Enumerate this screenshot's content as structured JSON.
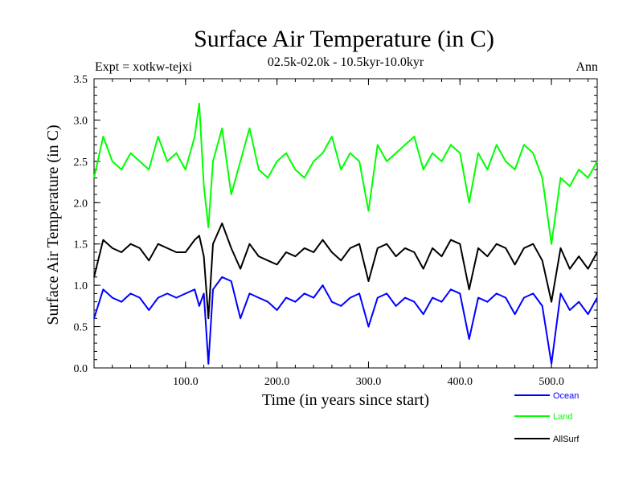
{
  "chart_data": {
    "type": "line",
    "title": "Surface Air Temperature (in C)",
    "subtitle": "02.5k-02.0k - 10.5kyr-10.0kyr",
    "expt_label": "Expt = xotkw-tejxi",
    "period_label": "Ann",
    "xlabel": "Time (in years since start)",
    "ylabel": "Surface Air Temperature (in C)",
    "xlim": [
      0,
      550
    ],
    "ylim": [
      0.0,
      3.5
    ],
    "x_ticks": [
      {
        "value": 100,
        "label": "100.0"
      },
      {
        "value": 200,
        "label": "200.0"
      },
      {
        "value": 300,
        "label": "300.0"
      },
      {
        "value": 400,
        "label": "400.0"
      },
      {
        "value": 500,
        "label": "500.0"
      }
    ],
    "y_ticks": [
      {
        "value": 0.0,
        "label": "0.0"
      },
      {
        "value": 0.5,
        "label": "0.5"
      },
      {
        "value": 1.0,
        "label": "1.0"
      },
      {
        "value": 1.5,
        "label": "1.5"
      },
      {
        "value": 2.0,
        "label": "2.0"
      },
      {
        "value": 2.5,
        "label": "2.5"
      },
      {
        "value": 3.0,
        "label": "3.0"
      },
      {
        "value": 3.5,
        "label": "3.5"
      }
    ],
    "x": [
      0,
      10,
      20,
      30,
      40,
      50,
      60,
      70,
      80,
      90,
      100,
      110,
      115,
      120,
      125,
      130,
      140,
      150,
      160,
      170,
      180,
      190,
      200,
      210,
      220,
      230,
      240,
      250,
      260,
      270,
      280,
      290,
      300,
      310,
      320,
      330,
      340,
      350,
      360,
      370,
      380,
      390,
      400,
      410,
      420,
      430,
      440,
      450,
      460,
      470,
      480,
      490,
      500,
      510,
      520,
      530,
      540,
      550
    ],
    "series": [
      {
        "name": "Ocean",
        "color": "#0000ff",
        "values": [
          0.6,
          0.95,
          0.85,
          0.8,
          0.9,
          0.85,
          0.7,
          0.85,
          0.9,
          0.85,
          0.9,
          0.95,
          0.75,
          0.9,
          0.05,
          0.95,
          1.1,
          1.05,
          0.6,
          0.9,
          0.85,
          0.8,
          0.7,
          0.85,
          0.8,
          0.9,
          0.85,
          1.0,
          0.8,
          0.75,
          0.85,
          0.9,
          0.5,
          0.85,
          0.9,
          0.75,
          0.85,
          0.8,
          0.65,
          0.85,
          0.8,
          0.95,
          0.9,
          0.35,
          0.85,
          0.8,
          0.9,
          0.85,
          0.65,
          0.85,
          0.9,
          0.75,
          0.05,
          0.9,
          0.7,
          0.8,
          0.65,
          0.85
        ]
      },
      {
        "name": "Land",
        "color": "#00ff00",
        "values": [
          2.3,
          2.8,
          2.5,
          2.4,
          2.6,
          2.5,
          2.4,
          2.8,
          2.5,
          2.6,
          2.4,
          2.8,
          3.2,
          2.2,
          1.7,
          2.5,
          2.9,
          2.1,
          2.5,
          2.9,
          2.4,
          2.3,
          2.5,
          2.6,
          2.4,
          2.3,
          2.5,
          2.6,
          2.8,
          2.4,
          2.6,
          2.5,
          1.9,
          2.7,
          2.5,
          2.6,
          2.7,
          2.8,
          2.4,
          2.6,
          2.5,
          2.7,
          2.6,
          2.0,
          2.6,
          2.4,
          2.7,
          2.5,
          2.4,
          2.7,
          2.6,
          2.3,
          1.5,
          2.3,
          2.2,
          2.4,
          2.3,
          2.5
        ]
      },
      {
        "name": "AllSurf",
        "color": "#000000",
        "values": [
          1.1,
          1.55,
          1.45,
          1.4,
          1.5,
          1.45,
          1.3,
          1.5,
          1.45,
          1.4,
          1.4,
          1.55,
          1.6,
          1.35,
          0.6,
          1.5,
          1.75,
          1.45,
          1.2,
          1.5,
          1.35,
          1.3,
          1.25,
          1.4,
          1.35,
          1.45,
          1.4,
          1.55,
          1.4,
          1.3,
          1.45,
          1.5,
          1.05,
          1.45,
          1.5,
          1.35,
          1.45,
          1.4,
          1.2,
          1.45,
          1.35,
          1.55,
          1.5,
          0.95,
          1.45,
          1.35,
          1.5,
          1.45,
          1.25,
          1.45,
          1.5,
          1.3,
          0.8,
          1.45,
          1.2,
          1.35,
          1.2,
          1.4
        ]
      }
    ]
  }
}
